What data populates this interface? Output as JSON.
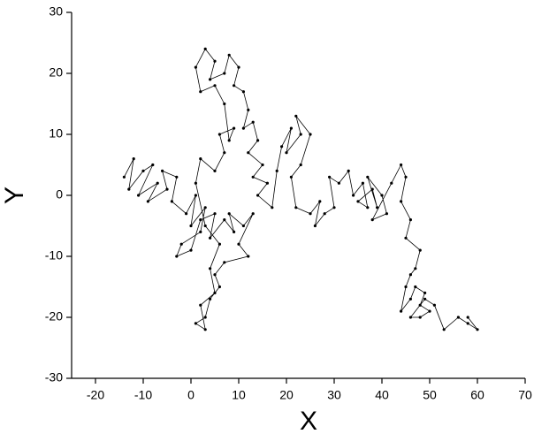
{
  "chart_data": {
    "type": "line",
    "x_label": "X",
    "y_label": "Y",
    "xlim": [
      -25,
      70
    ],
    "ylim": [
      -30,
      30
    ],
    "xticks": [
      -20,
      -10,
      0,
      10,
      20,
      30,
      40,
      50,
      60,
      70
    ],
    "yticks": [
      -30,
      -20,
      -10,
      0,
      10,
      20,
      30
    ],
    "markers": true,
    "x": [
      -14,
      -12,
      -13,
      -10,
      -8,
      -11,
      -7,
      -9,
      -5,
      -6,
      -3,
      -4,
      -1,
      1,
      0,
      3,
      2,
      -2,
      -3,
      0,
      2,
      5,
      4,
      7,
      9,
      8,
      11,
      13,
      10,
      12,
      7,
      5,
      6,
      4,
      3,
      1,
      3,
      2,
      5,
      4,
      6,
      3,
      1,
      2,
      5,
      7,
      6,
      9,
      8,
      7,
      5,
      2,
      1,
      3,
      5,
      4,
      7,
      8,
      10,
      9,
      11,
      12,
      11,
      13,
      14,
      12,
      15,
      13,
      16,
      14,
      17,
      18,
      19,
      21,
      20,
      23,
      22,
      25,
      23,
      21,
      22,
      25,
      27,
      26,
      28,
      30,
      29,
      31,
      33,
      34,
      36,
      37,
      35,
      38,
      39,
      37,
      40,
      41,
      38,
      42,
      44,
      45,
      44,
      46,
      45,
      48,
      47,
      46,
      45,
      44,
      46,
      47,
      49,
      48,
      50,
      48,
      46,
      49,
      51,
      53,
      56,
      58,
      60,
      58
    ],
    "series": [
      {
        "color": "#000000",
        "values": [
          3,
          6,
          1,
          4,
          5,
          0,
          2,
          -1,
          1,
          4,
          3,
          -1,
          -3,
          0,
          -5,
          -2,
          -6,
          -8,
          -10,
          -9,
          -4,
          -3,
          -7,
          -4,
          -6,
          -3,
          -5,
          -3,
          -8,
          -10,
          -11,
          -13,
          -15,
          -17,
          -20,
          -21,
          -22,
          -18,
          -16,
          -12,
          -8,
          -5,
          2,
          6,
          4,
          7,
          10,
          11,
          9,
          15,
          18,
          17,
          21,
          24,
          22,
          19,
          20,
          23,
          21,
          18,
          17,
          14,
          11,
          12,
          9,
          7,
          5,
          3,
          2,
          0,
          -2,
          4,
          8,
          11,
          7,
          10,
          13,
          10,
          5,
          3,
          -2,
          -3,
          -1,
          -5,
          -3,
          -2,
          3,
          2,
          4,
          0,
          2,
          -2,
          -1,
          1,
          -2,
          3,
          0,
          -3,
          -4,
          2,
          5,
          3,
          -1,
          -4,
          -7,
          -9,
          -12,
          -13,
          -15,
          -19,
          -17,
          -15,
          -16,
          -18,
          -19,
          -20,
          -20,
          -17,
          -18,
          -22,
          -20,
          -21,
          -22,
          -20
        ]
      }
    ]
  }
}
